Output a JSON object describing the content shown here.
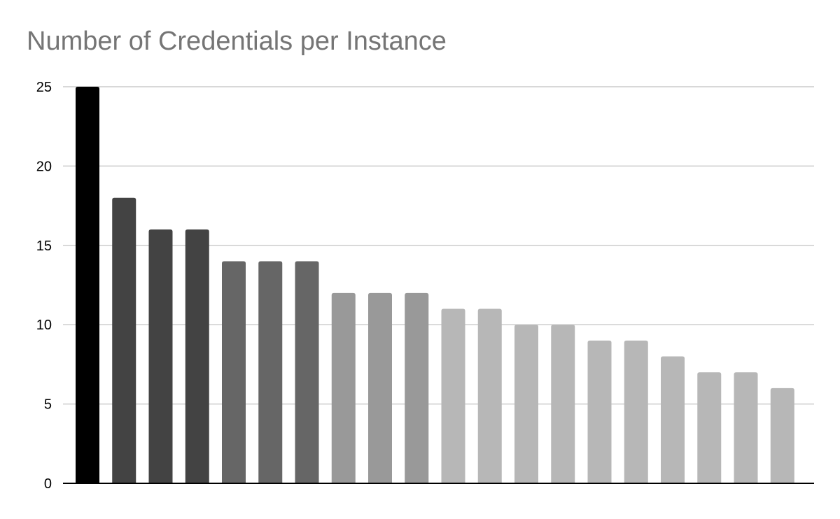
{
  "chart_data": {
    "type": "bar",
    "title": "Number of Credentials per Instance",
    "xlabel": "",
    "ylabel": "",
    "ylim": [
      0,
      25
    ],
    "yticks": [
      0,
      5,
      10,
      15,
      20,
      25
    ],
    "grid": true,
    "legend": "none",
    "values": [
      25,
      18,
      16,
      16,
      14,
      14,
      14,
      12,
      12,
      12,
      11,
      11,
      10,
      10,
      9,
      9,
      8,
      7,
      7,
      6
    ],
    "colors": [
      "#000000",
      "#434343",
      "#434343",
      "#434343",
      "#666666",
      "#666666",
      "#666666",
      "#999999",
      "#999999",
      "#999999",
      "#b7b7b7",
      "#b7b7b7",
      "#b7b7b7",
      "#b7b7b7",
      "#b7b7b7",
      "#b7b7b7",
      "#b7b7b7",
      "#b7b7b7",
      "#b7b7b7",
      "#b7b7b7"
    ],
    "gridline_color": "#cccccc",
    "axis_color": "#000000",
    "title_color": "#757575"
  }
}
